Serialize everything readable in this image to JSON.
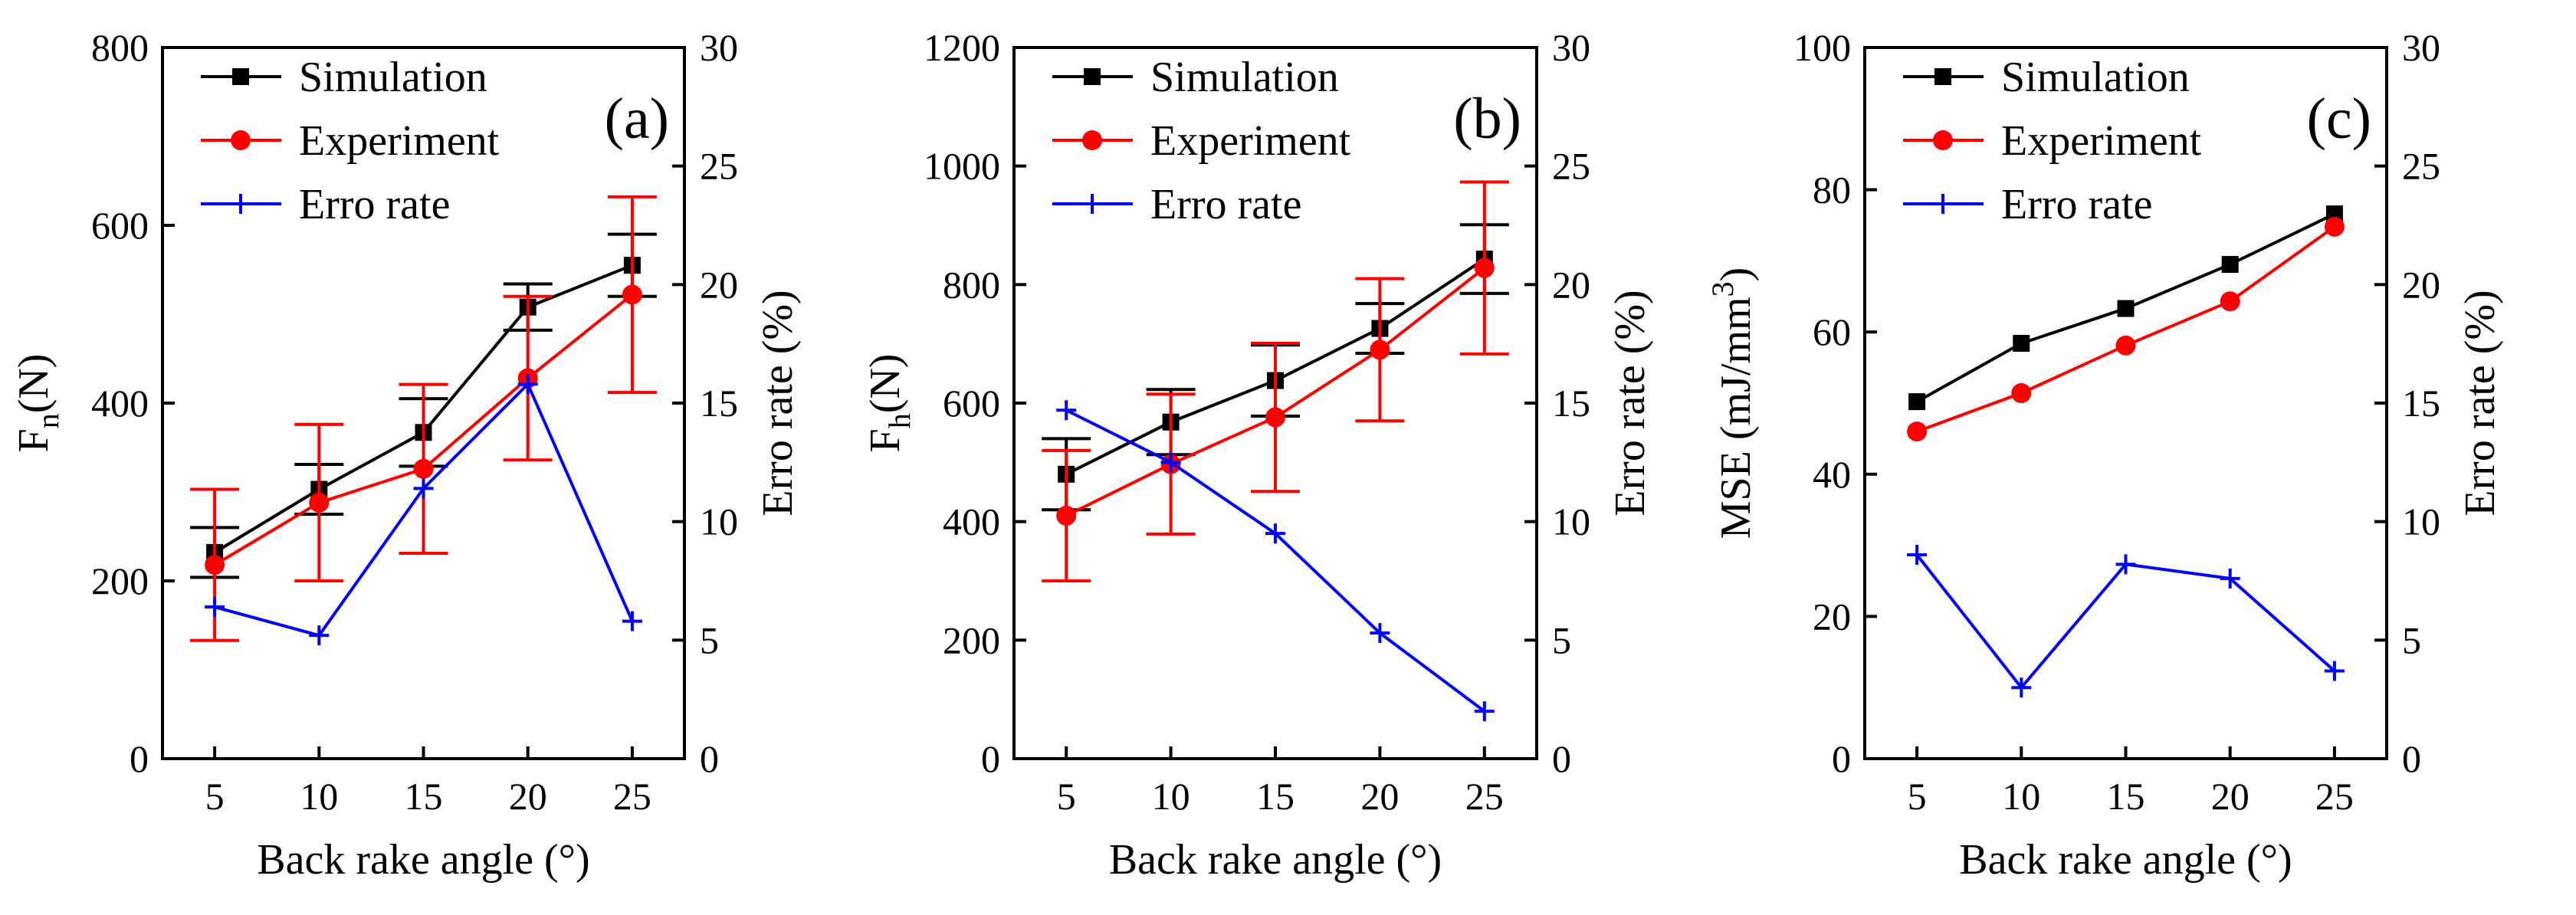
{
  "chart_data": [
    {
      "type": "line",
      "panel_label": "(a)",
      "x": [
        5,
        10,
        15,
        20,
        25
      ],
      "xlabel": "Back rake angle (°)",
      "xlim": [
        2.5,
        27.5
      ],
      "xticks": [
        5,
        10,
        15,
        20,
        25
      ],
      "ylabel": {
        "main": "F",
        "sub": "n",
        "unit": "(N)"
      },
      "ylim": [
        0,
        800
      ],
      "yticks": [
        0,
        200,
        400,
        600,
        800
      ],
      "y2label": "Erro rate (%)",
      "y2lim": [
        0,
        30
      ],
      "y2ticks": [
        0,
        5,
        10,
        15,
        20,
        25,
        30
      ],
      "series": [
        {
          "name": "Simulation",
          "axis": "left",
          "color": "#000000",
          "marker": "square",
          "values": [
            232,
            303,
            367,
            508,
            555
          ],
          "errors": [
            28,
            28,
            38,
            26,
            35
          ]
        },
        {
          "name": "Experiment",
          "axis": "left",
          "color": "#ff0000",
          "marker": "circle",
          "values": [
            218,
            288,
            326,
            428,
            522
          ],
          "errors": [
            85,
            88,
            95,
            92,
            110
          ]
        },
        {
          "name": "Erro rate",
          "axis": "right",
          "color": "#0000ff",
          "marker": "plus",
          "values": [
            6.4,
            5.2,
            11.4,
            15.8,
            5.8
          ],
          "errors": null
        }
      ]
    },
    {
      "type": "line",
      "panel_label": "(b)",
      "x": [
        5,
        10,
        15,
        20,
        25
      ],
      "xlabel": "Back rake angle (°)",
      "xlim": [
        2.5,
        27.5
      ],
      "xticks": [
        5,
        10,
        15,
        20,
        25
      ],
      "ylabel": {
        "main": "F",
        "sub": "h",
        "unit": "(N)"
      },
      "ylim": [
        0,
        1200
      ],
      "yticks": [
        0,
        200,
        400,
        600,
        800,
        1000,
        1200
      ],
      "y2label": "Erro rate (%)",
      "y2lim": [
        0,
        30
      ],
      "y2ticks": [
        0,
        5,
        10,
        15,
        20,
        25,
        30
      ],
      "series": [
        {
          "name": "Simulation",
          "axis": "left",
          "color": "#000000",
          "marker": "square",
          "values": [
            480,
            568,
            638,
            726,
            843
          ],
          "errors": [
            60,
            55,
            60,
            42,
            58
          ]
        },
        {
          "name": "Experiment",
          "axis": "left",
          "color": "#ff0000",
          "marker": "circle",
          "values": [
            410,
            497,
            576,
            690,
            828
          ],
          "errors": [
            110,
            118,
            125,
            120,
            145
          ]
        },
        {
          "name": "Erro rate",
          "axis": "right",
          "color": "#0000ff",
          "marker": "plus",
          "values": [
            14.7,
            12.5,
            9.5,
            5.3,
            2.0
          ],
          "errors": null
        }
      ]
    },
    {
      "type": "line",
      "panel_label": "(c)",
      "x": [
        5,
        10,
        15,
        20,
        25
      ],
      "xlabel": "Back rake angle (°)",
      "xlim": [
        2.5,
        27.5
      ],
      "xticks": [
        5,
        10,
        15,
        20,
        25
      ],
      "ylabel": {
        "main": "MSE (mJ/mm",
        "sup": "3",
        "tail": ")"
      },
      "ylim": [
        0,
        100
      ],
      "yticks": [
        0,
        20,
        40,
        60,
        80,
        100
      ],
      "y2label": "Erro rate (%)",
      "y2lim": [
        0,
        30
      ],
      "y2ticks": [
        0,
        5,
        10,
        15,
        20,
        25,
        30
      ],
      "series": [
        {
          "name": "Simulation",
          "axis": "left",
          "color": "#000000",
          "marker": "square",
          "values": [
            50.2,
            58.4,
            63.3,
            69.5,
            76.6
          ],
          "errors": null
        },
        {
          "name": "Experiment",
          "axis": "left",
          "color": "#ff0000",
          "marker": "circle",
          "values": [
            46.0,
            51.4,
            58.1,
            64.3,
            74.8
          ],
          "errors": null
        },
        {
          "name": "Erro rate",
          "axis": "right",
          "color": "#0000ff",
          "marker": "plus",
          "values": [
            8.6,
            3.0,
            8.2,
            7.6,
            3.7
          ],
          "errors": null
        }
      ]
    }
  ]
}
